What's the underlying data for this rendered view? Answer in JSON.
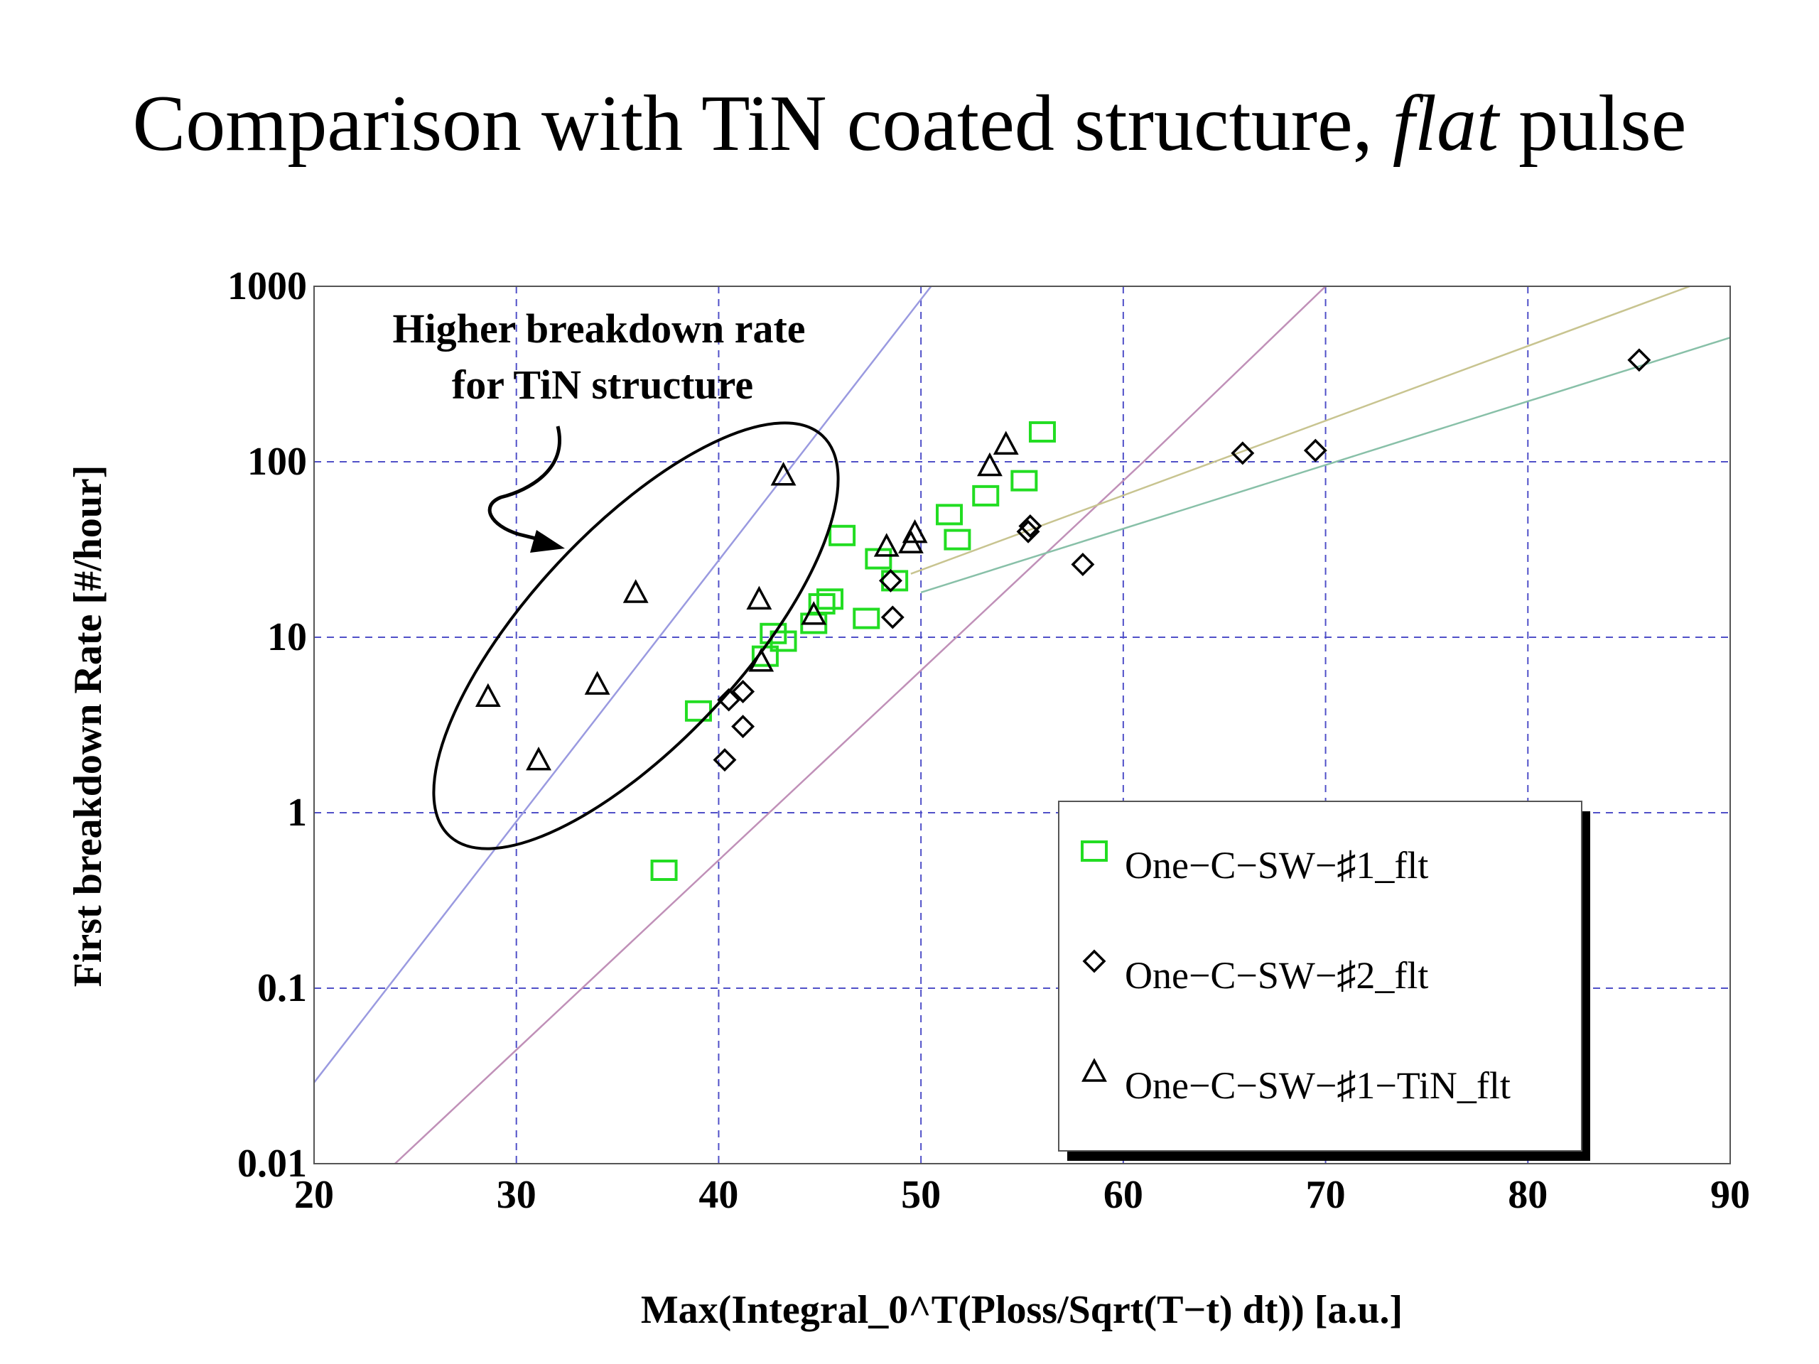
{
  "slide": {
    "title_main": "Comparison with TiN coated structure, ",
    "title_italic": "flat",
    "title_tail": " pulse"
  },
  "chart_data": {
    "type": "scatter",
    "xlabel": "Max(Integral_0^T(Ploss/Sqrt(T−t) dt)) [a.u.]",
    "ylabel": "First breakdown Rate [#/hour]",
    "xlim": [
      20,
      90
    ],
    "ylim": [
      0.01,
      1000
    ],
    "yscale": "log",
    "xticks": [
      20,
      30,
      40,
      50,
      60,
      70,
      80,
      90
    ],
    "yticks": [
      {
        "value": 0.01,
        "label": "0.01"
      },
      {
        "value": 0.1,
        "label": "0.1"
      },
      {
        "value": 1,
        "label": "1"
      },
      {
        "value": 10,
        "label": "10"
      },
      {
        "value": 100,
        "label": "100"
      },
      {
        "value": 1000,
        "label": "1000"
      }
    ],
    "grid": true,
    "legend_position": "bottom-right",
    "annotation": {
      "lines": [
        "Higher breakdown rate",
        "for TiN structure"
      ]
    },
    "series": [
      {
        "name": "One−C−SW−♯1_flt",
        "marker": "square",
        "color": "#22dd22",
        "points": [
          [
            37.3,
            0.47
          ],
          [
            39.0,
            3.8
          ],
          [
            42.3,
            7.8
          ],
          [
            42.7,
            10.5
          ],
          [
            43.2,
            9.5
          ],
          [
            44.7,
            12
          ],
          [
            45.1,
            15.5
          ],
          [
            45.5,
            16.5
          ],
          [
            46.1,
            38
          ],
          [
            47.3,
            12.8
          ],
          [
            47.9,
            28
          ],
          [
            48.7,
            21
          ],
          [
            51.4,
            50
          ],
          [
            51.8,
            36
          ],
          [
            53.2,
            64
          ],
          [
            55.1,
            78
          ],
          [
            56.0,
            148
          ]
        ]
      },
      {
        "name": "One−C−SW−♯2_flt",
        "marker": "diamond",
        "color": "#000000",
        "points": [
          [
            40.3,
            2.0
          ],
          [
            40.5,
            4.4
          ],
          [
            41.2,
            4.9
          ],
          [
            41.2,
            3.1
          ],
          [
            48.5,
            21
          ],
          [
            48.6,
            13
          ],
          [
            55.3,
            40
          ],
          [
            55.4,
            43
          ],
          [
            58.0,
            26
          ],
          [
            65.9,
            112
          ],
          [
            69.5,
            116
          ],
          [
            85.5,
            380
          ]
        ]
      },
      {
        "name": "One−C−SW−♯1−TiN_flt",
        "marker": "triangle",
        "color": "#000000",
        "points": [
          [
            28.6,
            4.6
          ],
          [
            31.1,
            2.0
          ],
          [
            34.0,
            5.4
          ],
          [
            35.9,
            18
          ],
          [
            42.0,
            16.5
          ],
          [
            42.1,
            7.3
          ],
          [
            43.2,
            84
          ],
          [
            44.7,
            13.5
          ],
          [
            48.3,
            33
          ],
          [
            49.5,
            34.5
          ],
          [
            49.7,
            39.5
          ],
          [
            53.4,
            95
          ],
          [
            54.2,
            126
          ]
        ]
      }
    ],
    "fit_lines": [
      {
        "color": "#9a9ae0",
        "points": [
          [
            20,
            0.029
          ],
          [
            50.5,
            1000
          ]
        ]
      },
      {
        "color": "#c090b8",
        "points": [
          [
            24,
            0.01
          ],
          [
            61,
            100
          ],
          [
            70,
            1000
          ]
        ]
      },
      {
        "color": "#c8c490",
        "points": [
          [
            49.5,
            23
          ],
          [
            88,
            1000
          ]
        ]
      },
      {
        "color": "#88c0a8",
        "points": [
          [
            50,
            18
          ],
          [
            90,
            510
          ]
        ]
      }
    ]
  }
}
